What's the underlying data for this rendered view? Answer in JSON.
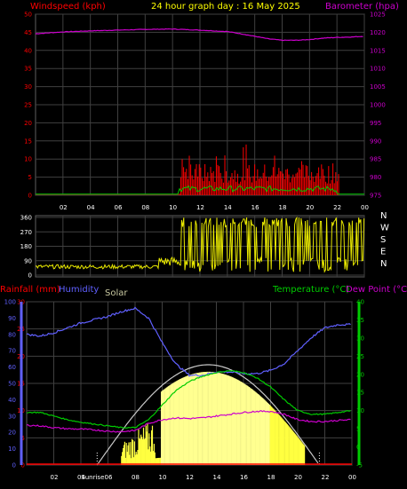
{
  "header": {
    "wind_label": "Windspeed (kph)",
    "title": "24 hour graph day : 16 May 2025",
    "baro_label": "Barometer (hpa)"
  },
  "lower": {
    "rain_label": "Rainfall (mm)",
    "humidity_label": "Humidity",
    "solar_label": "Solar",
    "temp_label": "Temperature (°C)",
    "dew_label": "Dew Point (°C)",
    "sunrise_label": "Sunrise"
  },
  "colors": {
    "wind": "#ff0000",
    "gust_mean": "#00cc00",
    "barometer": "#cc00cc",
    "direction": "#e8e800",
    "humidity": "#6060ff",
    "temperature": "#00cc00",
    "dewpoint": "#cc00cc",
    "solar_fill": "#ffff40",
    "solar_max": "#c8c8c8",
    "axis": "#ffffff",
    "grid": "#404040"
  },
  "chart_data": [
    {
      "type": "line",
      "name_hint": "wind-baro",
      "x_ticks": [
        "02",
        "04",
        "06",
        "08",
        "10",
        "12",
        "14",
        "16",
        "18",
        "20",
        "22",
        "00"
      ],
      "y_left_ticks": [
        "0",
        "5",
        "10",
        "15",
        "20",
        "25",
        "30",
        "35",
        "40",
        "45",
        "50"
      ],
      "y_right_ticks": [
        "975",
        "980",
        "985",
        "990",
        "995",
        "1000",
        "1005",
        "1010",
        "1015",
        "1020",
        "1025"
      ],
      "ylim_left": [
        0,
        50
      ],
      "ylim_right": [
        975,
        1025
      ],
      "series": [
        {
          "axis": "right",
          "x": [
            0,
            2,
            4,
            6,
            8,
            10,
            12,
            14,
            15,
            16,
            17,
            18,
            19,
            20,
            21,
            22,
            23,
            24
          ],
          "values": [
            1019.6,
            1020.1,
            1020.4,
            1020.6,
            1020.8,
            1020.9,
            1020.6,
            1020.2,
            1019.6,
            1018.9,
            1018.2,
            1017.8,
            1017.8,
            1018.0,
            1018.4,
            1018.6,
            1018.7,
            1018.9
          ]
        }
      ]
    },
    {
      "type": "line",
      "name_hint": "direction",
      "y_ticks": [
        "360",
        "270",
        "180",
        "90",
        "0"
      ],
      "compass": [
        "N",
        "W",
        "S",
        "E",
        "N"
      ],
      "ylim": [
        0,
        360
      ]
    },
    {
      "type": "line",
      "name_hint": "rain-hum-temp",
      "x_ticks": [
        "02",
        "04",
        "06",
        "08",
        "10",
        "12",
        "14",
        "16",
        "18",
        "20",
        "22",
        "00"
      ],
      "humidity_ticks": [
        "0",
        "10",
        "20",
        "30",
        "40",
        "50",
        "60",
        "70",
        "80",
        "90",
        "100"
      ],
      "rain_ticks": [
        "0",
        "5",
        "10",
        "15",
        "20",
        "25",
        "30"
      ],
      "temp_ticks": [
        "-5",
        "0",
        "5",
        "10",
        "15",
        "20",
        "25",
        "30",
        "35",
        "40"
      ],
      "humidity_range": [
        0,
        100
      ],
      "rain_range": [
        0,
        30
      ],
      "temp_range": [
        -5,
        40
      ],
      "series": [
        {
          "axis": "humidity",
          "x": [
            0,
            1,
            2,
            3,
            4,
            5,
            6,
            7,
            8,
            9,
            10,
            11,
            12,
            13,
            14,
            15,
            16,
            17,
            18,
            19,
            20,
            21,
            22,
            23,
            24
          ],
          "values": [
            80,
            79,
            81,
            84,
            87,
            89,
            91,
            94,
            96,
            90,
            75,
            62,
            55,
            55,
            57,
            57,
            56,
            56,
            58,
            62,
            70,
            78,
            84,
            86,
            86
          ]
        },
        {
          "axis": "temp",
          "x": [
            0,
            1,
            2,
            3,
            4,
            5,
            6,
            7,
            8,
            9,
            10,
            11,
            12,
            13,
            14,
            15,
            16,
            17,
            18,
            19,
            20,
            21,
            22,
            23,
            24
          ],
          "values": [
            9.5,
            9.5,
            8.5,
            7.5,
            6.8,
            6.3,
            5.8,
            5.3,
            5.3,
            7.5,
            11.5,
            15.5,
            18.0,
            19.5,
            20.5,
            21.0,
            20.5,
            19.0,
            16.5,
            13.0,
            10.0,
            9.0,
            9.0,
            9.5,
            10.0
          ]
        },
        {
          "axis": "temp",
          "x": [
            0,
            1,
            2,
            3,
            4,
            5,
            6,
            7,
            8,
            9,
            10,
            11,
            12,
            13,
            14,
            15,
            16,
            17,
            18,
            19,
            20,
            21,
            22,
            23,
            24
          ],
          "values": [
            6.0,
            5.8,
            5.3,
            5.0,
            4.9,
            4.7,
            4.3,
            4.2,
            4.5,
            6.5,
            7.5,
            8.0,
            7.8,
            8.0,
            8.5,
            9.0,
            9.5,
            9.8,
            9.8,
            9.0,
            7.5,
            7.0,
            7.0,
            7.3,
            7.5
          ]
        }
      ]
    }
  ]
}
